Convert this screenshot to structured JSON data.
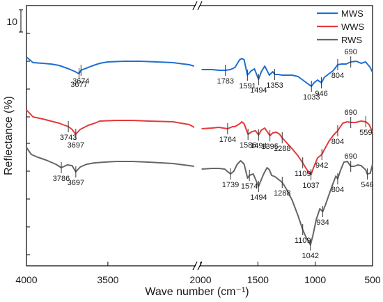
{
  "chart_data": {
    "type": "line",
    "xlabel": "Wave number (cm⁻¹)",
    "ylabel": "Reflectance (%)",
    "x_axis_reversed": true,
    "x_axis_break": [
      2000,
      4000
    ],
    "x_ticks_left_segment": [
      4000,
      3500
    ],
    "x_ticks_right_segment": [
      2000,
      1500,
      1000,
      500
    ],
    "x_tick_labels": [
      "4000",
      "3500",
      "2000",
      "1500",
      "1000",
      "500"
    ],
    "scale_bar_label": "10",
    "legend_placement": "top-right",
    "series": [
      {
        "name": "MWS",
        "color": "#1f6fd1",
        "points": [
          [
            4000,
            82
          ],
          [
            3960,
            90
          ],
          [
            3900,
            91
          ],
          [
            3850,
            92
          ],
          [
            3800,
            94
          ],
          [
            3740,
            99
          ],
          [
            3700,
            103
          ],
          [
            3677,
            106
          ],
          [
            3665,
            101
          ],
          [
            3600,
            95
          ],
          [
            3550,
            91
          ],
          [
            3500,
            89
          ],
          [
            3400,
            88
          ],
          [
            3300,
            88
          ],
          [
            3200,
            89
          ],
          [
            3100,
            90
          ],
          [
            3000,
            93
          ],
          [
            2970,
            95
          ],
          [
            1990,
            100
          ],
          [
            1900,
            100
          ],
          [
            1840,
            101
          ],
          [
            1783,
            101
          ],
          [
            1740,
            100
          ],
          [
            1700,
            97
          ],
          [
            1660,
            86
          ],
          [
            1640,
            84
          ],
          [
            1620,
            86
          ],
          [
            1591,
            108
          ],
          [
            1560,
            102
          ],
          [
            1530,
            99
          ],
          [
            1494,
            114
          ],
          [
            1470,
            103
          ],
          [
            1440,
            95
          ],
          [
            1400,
            108
          ],
          [
            1370,
            103
          ],
          [
            1353,
            107
          ],
          [
            1320,
            107
          ],
          [
            1290,
            108
          ],
          [
            1250,
            108
          ],
          [
            1200,
            108
          ],
          [
            1150,
            110
          ],
          [
            1100,
            116
          ],
          [
            1060,
            121
          ],
          [
            1033,
            124
          ],
          [
            1010,
            119
          ],
          [
            980,
            115
          ],
          [
            946,
            119
          ],
          [
            920,
            111
          ],
          [
            880,
            106
          ],
          [
            840,
            101
          ],
          [
            804,
            93
          ],
          [
            770,
            92
          ],
          [
            730,
            92
          ],
          [
            690,
            89
          ],
          [
            640,
            88
          ],
          [
            600,
            91
          ],
          [
            560,
            89
          ],
          [
            520,
            97
          ],
          [
            500,
            104
          ]
        ]
      },
      {
        "name": "WWS",
        "color": "#e33a3a",
        "points": [
          [
            4000,
            158
          ],
          [
            3960,
            168
          ],
          [
            3900,
            171
          ],
          [
            3850,
            174
          ],
          [
            3800,
            177
          ],
          [
            3743,
            182
          ],
          [
            3720,
            186
          ],
          [
            3697,
            193
          ],
          [
            3670,
            186
          ],
          [
            3620,
            180
          ],
          [
            3580,
            177
          ],
          [
            3550,
            174
          ],
          [
            3450,
            173
          ],
          [
            3350,
            173
          ],
          [
            3250,
            174
          ],
          [
            3100,
            175
          ],
          [
            3000,
            179
          ],
          [
            2970,
            183
          ],
          [
            1990,
            185
          ],
          [
            1900,
            184
          ],
          [
            1840,
            183
          ],
          [
            1764,
            185
          ],
          [
            1720,
            182
          ],
          [
            1700,
            182
          ],
          [
            1660,
            178
          ],
          [
            1640,
            175
          ],
          [
            1620,
            178
          ],
          [
            1586,
            193
          ],
          [
            1550,
            189
          ],
          [
            1520,
            188
          ],
          [
            1494,
            194
          ],
          [
            1470,
            187
          ],
          [
            1440,
            184
          ],
          [
            1395,
            195
          ],
          [
            1370,
            191
          ],
          [
            1340,
            190
          ],
          [
            1310,
            193
          ],
          [
            1288,
            198
          ],
          [
            1250,
            205
          ],
          [
            1200,
            214
          ],
          [
            1150,
            224
          ],
          [
            1109,
            234
          ],
          [
            1080,
            242
          ],
          [
            1060,
            247
          ],
          [
            1037,
            251
          ],
          [
            1010,
            239
          ],
          [
            980,
            227
          ],
          [
            942,
            222
          ],
          [
            920,
            215
          ],
          [
            880,
            203
          ],
          [
            840,
            194
          ],
          [
            804,
            188
          ],
          [
            760,
            177
          ],
          [
            720,
            175
          ],
          [
            690,
            176
          ],
          [
            650,
            176
          ],
          [
            600,
            174
          ],
          [
            559,
            175
          ],
          [
            530,
            179
          ],
          [
            500,
            190
          ]
        ]
      },
      {
        "name": "RWS",
        "color": "#666666",
        "points": [
          [
            4000,
            212
          ],
          [
            3970,
            222
          ],
          [
            3930,
            226
          ],
          [
            3880,
            230
          ],
          [
            3820,
            236
          ],
          [
            3786,
            241
          ],
          [
            3750,
            237
          ],
          [
            3720,
            238
          ],
          [
            3697,
            247
          ],
          [
            3670,
            240
          ],
          [
            3630,
            236
          ],
          [
            3580,
            234
          ],
          [
            3520,
            233
          ],
          [
            3450,
            232
          ],
          [
            3350,
            232
          ],
          [
            3250,
            233
          ],
          [
            3100,
            235
          ],
          [
            3000,
            238
          ],
          [
            2970,
            239
          ],
          [
            1990,
            243
          ],
          [
            1900,
            242
          ],
          [
            1840,
            242
          ],
          [
            1790,
            243
          ],
          [
            1739,
            250
          ],
          [
            1710,
            246
          ],
          [
            1680,
            236
          ],
          [
            1650,
            231
          ],
          [
            1620,
            236
          ],
          [
            1590,
            256
          ],
          [
            1574,
            252
          ],
          [
            1540,
            250
          ],
          [
            1494,
            268
          ],
          [
            1480,
            262
          ],
          [
            1450,
            250
          ],
          [
            1420,
            241
          ],
          [
            1400,
            244
          ],
          [
            1380,
            252
          ],
          [
            1350,
            254
          ],
          [
            1320,
            258
          ],
          [
            1288,
            262
          ],
          [
            1250,
            272
          ],
          [
            1200,
            288
          ],
          [
            1150,
            310
          ],
          [
            1109,
            330
          ],
          [
            1080,
            341
          ],
          [
            1060,
            346
          ],
          [
            1042,
            352
          ],
          [
            1020,
            338
          ],
          [
            990,
            315
          ],
          [
            960,
            300
          ],
          [
            934,
            304
          ],
          [
            910,
            294
          ],
          [
            880,
            280
          ],
          [
            850,
            266
          ],
          [
            820,
            253
          ],
          [
            804,
            257
          ],
          [
            780,
            245
          ],
          [
            750,
            233
          ],
          [
            720,
            232
          ],
          [
            690,
            239
          ],
          [
            660,
            239
          ],
          [
            630,
            237
          ],
          [
            600,
            238
          ],
          [
            560,
            244
          ],
          [
            546,
            250
          ],
          [
            520,
            249
          ],
          [
            500,
            236
          ]
        ]
      }
    ],
    "annotations": [
      {
        "series": "MWS",
        "label": "3677",
        "x": 3677,
        "pos": "below"
      },
      {
        "series": "MWS",
        "label": "3674",
        "x": 3665,
        "pos": "below"
      },
      {
        "series": "MWS",
        "label": "1783",
        "x": 1783,
        "pos": "below"
      },
      {
        "series": "MWS",
        "label": "1591",
        "x": 1591,
        "pos": "below"
      },
      {
        "series": "MWS",
        "label": "1494",
        "x": 1494,
        "pos": "below"
      },
      {
        "series": "MWS",
        "label": "1353",
        "x": 1353,
        "pos": "below"
      },
      {
        "series": "MWS",
        "label": "1033",
        "x": 1033,
        "pos": "below"
      },
      {
        "series": "MWS",
        "label": "946",
        "x": 946,
        "pos": "below"
      },
      {
        "series": "MWS",
        "label": "804",
        "x": 804,
        "pos": "below"
      },
      {
        "series": "MWS",
        "label": "690",
        "x": 690,
        "pos": "above"
      },
      {
        "series": "WWS",
        "label": "3743",
        "x": 3743,
        "pos": "below"
      },
      {
        "series": "WWS",
        "label": "3697",
        "x": 3697,
        "pos": "below"
      },
      {
        "series": "WWS",
        "label": "1764",
        "x": 1764,
        "pos": "below"
      },
      {
        "series": "WWS",
        "label": "1586",
        "x": 1586,
        "pos": "below"
      },
      {
        "series": "WWS",
        "label": "1494",
        "x": 1494,
        "pos": "below"
      },
      {
        "series": "WWS",
        "label": "1395",
        "x": 1395,
        "pos": "below"
      },
      {
        "series": "WWS",
        "label": "1288",
        "x": 1288,
        "pos": "below"
      },
      {
        "series": "WWS",
        "label": "1109",
        "x": 1109,
        "pos": "below"
      },
      {
        "series": "WWS",
        "label": "1037",
        "x": 1037,
        "pos": "below"
      },
      {
        "series": "WWS",
        "label": "942",
        "x": 942,
        "pos": "below"
      },
      {
        "series": "WWS",
        "label": "804",
        "x": 804,
        "pos": "below"
      },
      {
        "series": "WWS",
        "label": "690",
        "x": 690,
        "pos": "above"
      },
      {
        "series": "WWS",
        "label": "559",
        "x": 559,
        "pos": "below"
      },
      {
        "series": "RWS",
        "label": "3786",
        "x": 3786,
        "pos": "below"
      },
      {
        "series": "RWS",
        "label": "3697",
        "x": 3697,
        "pos": "below"
      },
      {
        "series": "RWS",
        "label": "1739",
        "x": 1739,
        "pos": "below"
      },
      {
        "series": "RWS",
        "label": "1574",
        "x": 1574,
        "pos": "below"
      },
      {
        "series": "RWS",
        "label": "1494",
        "x": 1494,
        "pos": "below"
      },
      {
        "series": "RWS",
        "label": "1288",
        "x": 1288,
        "pos": "below"
      },
      {
        "series": "RWS",
        "label": "1109",
        "x": 1109,
        "pos": "below"
      },
      {
        "series": "RWS",
        "label": "1042",
        "x": 1042,
        "pos": "below"
      },
      {
        "series": "RWS",
        "label": "934",
        "x": 934,
        "pos": "below"
      },
      {
        "series": "RWS",
        "label": "804",
        "x": 804,
        "pos": "below"
      },
      {
        "series": "RWS",
        "label": "690",
        "x": 690,
        "pos": "above"
      },
      {
        "series": "RWS",
        "label": "546",
        "x": 546,
        "pos": "below"
      }
    ]
  }
}
